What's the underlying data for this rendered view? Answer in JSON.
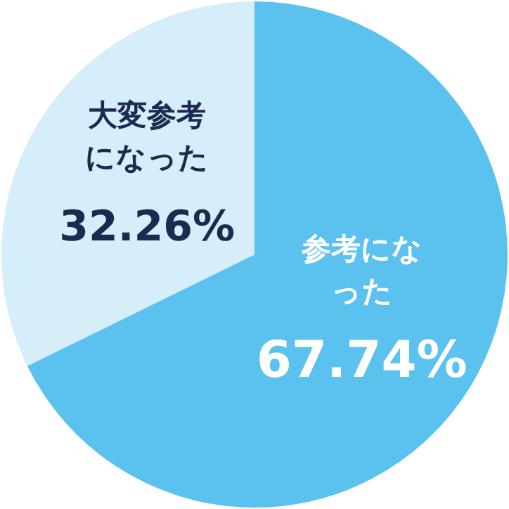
{
  "chart_data": {
    "type": "pie",
    "categories": [
      "参考になった",
      "大変参考になった"
    ],
    "values": [
      67.74,
      32.26
    ],
    "colors": [
      "#5bc2f0",
      "#d6eef9"
    ],
    "value_labels": [
      "67.74%",
      "32.26%"
    ],
    "legend": false
  }
}
